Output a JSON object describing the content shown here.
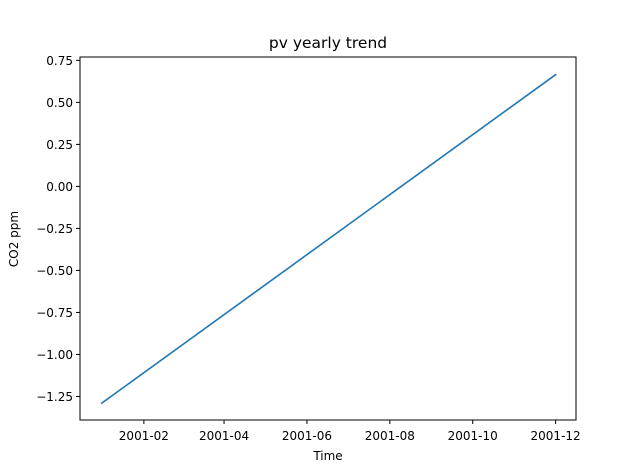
{
  "chart_data": {
    "type": "line",
    "title": "pv yearly trend",
    "xlabel": "Time",
    "ylabel": "CO2 ppm",
    "x_axis_type": "date",
    "xlim": [
      "2000-12-16",
      "2001-12-16"
    ],
    "ylim": [
      -1.39,
      0.77
    ],
    "x_ticks": [
      "2001-02-01",
      "2001-04-01",
      "2001-06-01",
      "2001-08-01",
      "2001-10-01",
      "2001-12-01"
    ],
    "x_tick_labels": [
      "2001-02",
      "2001-04",
      "2001-06",
      "2001-08",
      "2001-10",
      "2001-12"
    ],
    "y_ticks": [
      0.75,
      0.5,
      0.25,
      0.0,
      -0.25,
      -0.5,
      -0.75,
      -1.0,
      -1.25
    ],
    "y_tick_labels": [
      "0.75",
      "0.50",
      "0.25",
      "0.00",
      "−0.25",
      "−0.50",
      "−0.75",
      "−1.00",
      "−1.25"
    ],
    "grid": false,
    "series": [
      {
        "color": "#1f77b4",
        "x": [
          "2001-01-01",
          "2001-12-01"
        ],
        "y": [
          -1.29,
          0.665
        ]
      }
    ]
  }
}
